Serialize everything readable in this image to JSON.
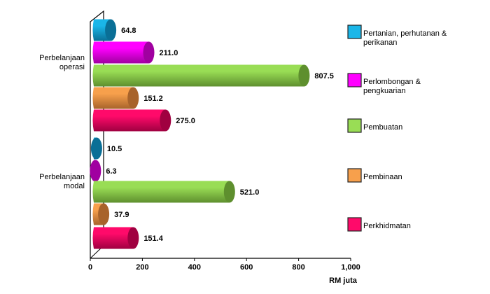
{
  "chart_data": {
    "type": "bar",
    "orientation": "horizontal",
    "title": "",
    "xlabel": "RM juta",
    "ylabel": "",
    "xlim": [
      0,
      1000
    ],
    "xticks": [
      "0",
      "200",
      "400",
      "600",
      "800",
      "1,000"
    ],
    "xtick_values": [
      0,
      200,
      400,
      600,
      800,
      1000
    ],
    "categories": [
      [
        "Perbelanjaan",
        "operasi"
      ],
      [
        "Perbelanjaan",
        "modal"
      ]
    ],
    "series": [
      {
        "name": "Pertanian, perhutanan & perikanan",
        "legend_lines": [
          "Pertanian, perhutanan &",
          "perikanan"
        ],
        "color": "#1ab6e8",
        "dark": "#0a6f96",
        "values": [
          64.8,
          10.5
        ],
        "labels": [
          "64.8",
          "10.5"
        ]
      },
      {
        "name": "Perlombongan & pengkuarian",
        "legend_lines": [
          "Perlombongan &",
          "pengkuarian"
        ],
        "color": "#ff00ff",
        "dark": "#a000a0",
        "values": [
          211.0,
          6.3
        ],
        "labels": [
          "211.0",
          "6.3"
        ]
      },
      {
        "name": "Pembuatan",
        "legend_lines": [
          "Pembuatan"
        ],
        "color": "#99dd55",
        "dark": "#5e8f2e",
        "values": [
          807.5,
          521.0
        ],
        "labels": [
          "807.5",
          "521.0"
        ]
      },
      {
        "name": "Pembinaan",
        "legend_lines": [
          "Pembinaan"
        ],
        "color": "#f7a04c",
        "dark": "#a8632b",
        "values": [
          151.2,
          37.9
        ],
        "labels": [
          "151.2",
          "37.9"
        ]
      },
      {
        "name": "Perkhidmatan",
        "legend_lines": [
          "Perkhidmatan"
        ],
        "color": "#ff0a6a",
        "dark": "#a00040",
        "values": [
          275.0,
          151.4
        ],
        "labels": [
          "275.0",
          "151.4"
        ]
      }
    ],
    "legend_position": "right",
    "grid": false
  }
}
